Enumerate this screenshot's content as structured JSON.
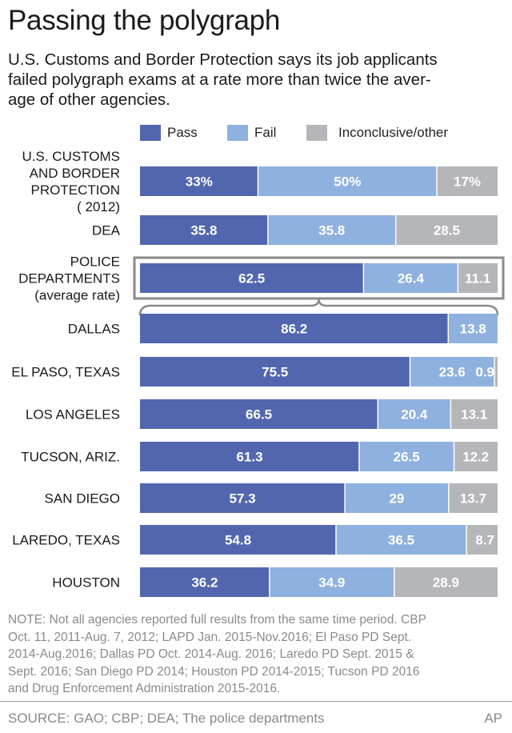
{
  "title": "Passing the polygraph",
  "subtitle_lines": [
    "U.S. Customs and Border Protection says its job applicants",
    "failed polygraph exams at a rate more than twice the aver-",
    "age of other agencies."
  ],
  "legend": [
    {
      "label": "Pass",
      "color": "#5266b0"
    },
    {
      "label": "Fail",
      "color": "#8fb1df"
    },
    {
      "label": "Inconclusive/other",
      "color": "#b5b6b9"
    }
  ],
  "colors": {
    "pass": "#5266b0",
    "fail": "#8fb1df",
    "other": "#b5b6b9",
    "highlight_box": "#8a8a8a"
  },
  "chart_data": {
    "type": "bar",
    "orientation": "horizontal-stacked",
    "series_names": [
      "Pass",
      "Fail",
      "Inconclusive/other"
    ],
    "rows": [
      {
        "label_lines": [
          "U.S. CUSTOMS",
          "AND BORDER",
          "PROTECTION",
          "( 2012)"
        ],
        "values": [
          33,
          50,
          17
        ],
        "texts": [
          "33%",
          "50%",
          "17%"
        ]
      },
      {
        "label_lines": [
          "DEA"
        ],
        "values": [
          35.8,
          35.8,
          28.5
        ],
        "texts": [
          "35.8",
          "35.8",
          "28.5"
        ]
      },
      {
        "label_lines": [
          "POLICE",
          "DEPARTMENTS",
          "(average rate)"
        ],
        "values": [
          62.5,
          26.4,
          11.1
        ],
        "texts": [
          "62.5",
          "26.4",
          "11.1"
        ],
        "highlight": true
      },
      {
        "label_lines": [
          "DALLAS"
        ],
        "values": [
          86.2,
          13.8,
          0
        ],
        "texts": [
          "86.2",
          "13.8",
          ""
        ]
      },
      {
        "label_lines": [
          "EL PASO, TEXAS"
        ],
        "values": [
          75.5,
          23.6,
          0.9
        ],
        "texts": [
          "75.5",
          "23.6",
          "0.9"
        ]
      },
      {
        "label_lines": [
          "LOS ANGELES"
        ],
        "values": [
          66.5,
          20.4,
          13.1
        ],
        "texts": [
          "66.5",
          "20.4",
          "13.1"
        ]
      },
      {
        "label_lines": [
          "TUCSON, ARIZ."
        ],
        "values": [
          61.3,
          26.5,
          12.2
        ],
        "texts": [
          "61.3",
          "26.5",
          "12.2"
        ]
      },
      {
        "label_lines": [
          "SAN DIEGO"
        ],
        "values": [
          57.3,
          29,
          13.7
        ],
        "texts": [
          "57.3",
          "29",
          "13.7"
        ]
      },
      {
        "label_lines": [
          "LAREDO, TEXAS"
        ],
        "values": [
          54.8,
          36.5,
          8.7
        ],
        "texts": [
          "54.8",
          "36.5",
          "8.7"
        ]
      },
      {
        "label_lines": [
          "HOUSTON"
        ],
        "values": [
          36.2,
          34.9,
          28.9
        ],
        "texts": [
          "36.2",
          "34.9",
          "28.9"
        ]
      }
    ]
  },
  "note_lines": [
    "NOTE: Not all agencies reported full results from the same time period. CBP",
    "Oct. 11, 2011-Aug. 7, 2012; LAPD Jan. 2015-Nov.2016; El Paso PD Sept.",
    "2014-Aug.2016; Dallas PD Oct. 2014-Aug. 2016; Laredo PD Sept. 2015 &",
    "Sept. 2016; San Diego PD 2014; Houston PD 2014-2015; Tucson PD 2016",
    "and Drug Enforcement Administration 2015-2016."
  ],
  "source": "SOURCE: GAO; CBP; DEA; The police departments",
  "credit": "AP"
}
